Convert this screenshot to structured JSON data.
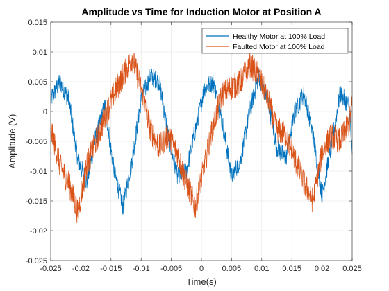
{
  "chart_data": {
    "type": "line",
    "title": "Amplitude vs Time for Induction Motor at Position A",
    "xlabel": "Time(s)",
    "ylabel": "Amplitude (V)",
    "xlim": [
      -0.025,
      0.025
    ],
    "ylim": [
      -0.025,
      0.015
    ],
    "xticks": [
      -0.025,
      -0.02,
      -0.015,
      -0.01,
      -0.005,
      0,
      0.005,
      0.01,
      0.015,
      0.02,
      0.025
    ],
    "xtick_labels": [
      "-0.025",
      "-0.02",
      "-0.015",
      "-0.01",
      "-0.005",
      "0",
      "0.005",
      "0.01",
      "0.015",
      "0.02",
      "0.025"
    ],
    "yticks": [
      -0.025,
      -0.02,
      -0.015,
      -0.01,
      -0.005,
      0,
      0.005,
      0.01,
      0.015
    ],
    "ytick_labels": [
      "-0.025",
      "-0.02",
      "-0.015",
      "-0.01",
      "-0.005",
      "0",
      "0.005",
      "0.01",
      "0.015"
    ],
    "grid": true,
    "legend_position": "top-right",
    "series": [
      {
        "name": "Healthy Motor at 100% Load",
        "color": "#0072BD",
        "x": [
          -0.025,
          -0.0235,
          -0.022,
          -0.0205,
          -0.019,
          -0.0175,
          -0.016,
          -0.0145,
          -0.013,
          -0.0115,
          -0.01,
          -0.0085,
          -0.007,
          -0.0055,
          -0.004,
          -0.0025,
          -0.001,
          0.0005,
          0.002,
          0.0035,
          0.005,
          0.0065,
          0.008,
          0.0095,
          0.011,
          0.0125,
          0.014,
          0.0155,
          0.017,
          0.0185,
          0.02,
          0.0215,
          0.023,
          0.0245,
          0.025
        ],
        "y": [
          0.002,
          0.005,
          0.002,
          -0.008,
          -0.012,
          -0.004,
          0.001,
          -0.01,
          -0.016,
          -0.008,
          0.002,
          0.006,
          0.005,
          -0.004,
          -0.011,
          -0.01,
          -0.003,
          0.004,
          0.005,
          -0.002,
          -0.011,
          -0.008,
          0.0,
          0.006,
          0.002,
          -0.006,
          -0.008,
          0.0,
          0.003,
          -0.004,
          -0.014,
          -0.006,
          0.003,
          0.001,
          -0.008
        ]
      },
      {
        "name": "Faulted Motor at 100% Load",
        "color": "#D95319",
        "x": [
          -0.025,
          -0.0235,
          -0.022,
          -0.0205,
          -0.019,
          -0.0175,
          -0.016,
          -0.0145,
          -0.013,
          -0.0115,
          -0.01,
          -0.0085,
          -0.007,
          -0.0055,
          -0.004,
          -0.0025,
          -0.001,
          0.0005,
          0.002,
          0.0035,
          0.005,
          0.0065,
          0.008,
          0.0095,
          0.011,
          0.0125,
          0.014,
          0.0155,
          0.017,
          0.0185,
          0.02,
          0.0215,
          0.023,
          0.0245,
          0.025
        ],
        "y": [
          -0.003,
          -0.009,
          -0.012,
          -0.017,
          -0.009,
          -0.005,
          -0.001,
          0.003,
          0.006,
          0.009,
          0.004,
          -0.003,
          -0.006,
          -0.004,
          -0.007,
          -0.012,
          -0.016,
          -0.009,
          -0.002,
          0.003,
          0.004,
          0.005,
          0.008,
          0.006,
          0.002,
          -0.003,
          -0.004,
          -0.008,
          -0.012,
          -0.015,
          -0.007,
          -0.004,
          -0.005,
          -0.002,
          0.001
        ]
      }
    ]
  }
}
